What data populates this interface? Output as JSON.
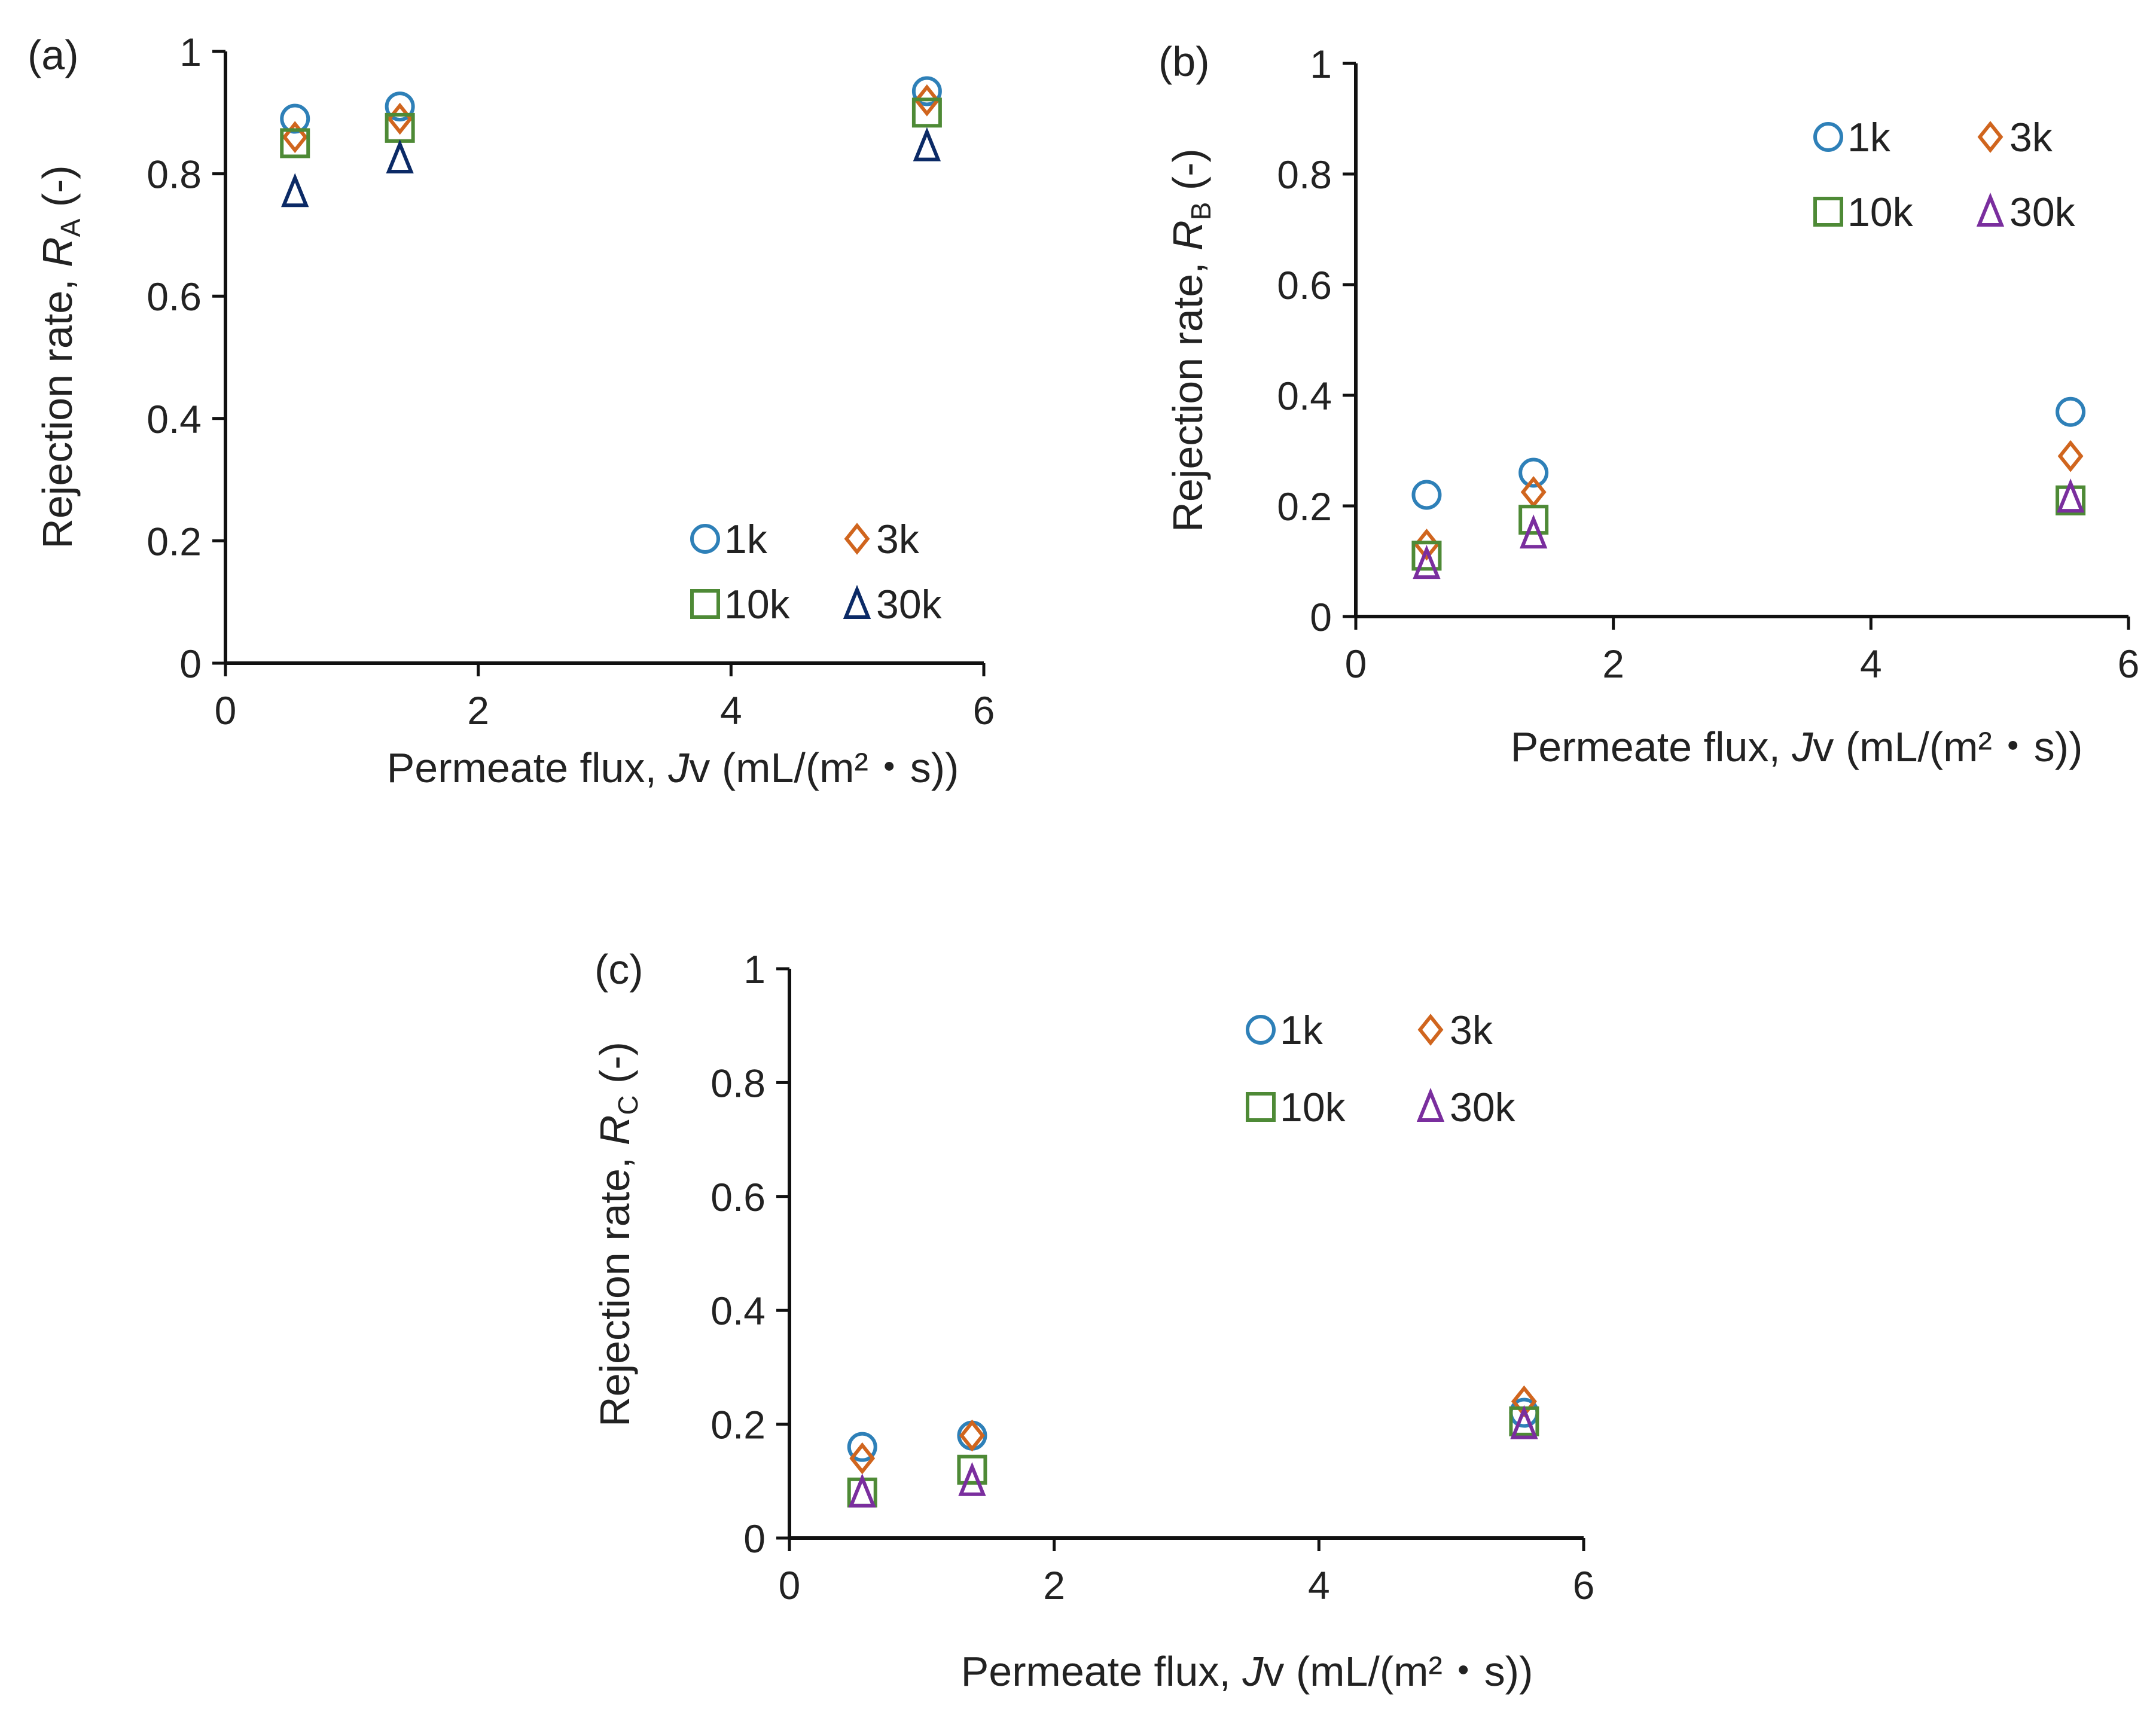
{
  "chart_data": [
    {
      "type": "scatter",
      "panel_label": "(a)",
      "xlabel": {
        "prefix": "Permeate flux, ",
        "var": "J",
        "suffix": "v (mL/(m²・s))"
      },
      "ylabel": {
        "prefix": "Rejection rate, ",
        "var": "R",
        "sub": "A",
        "suffix": " (-)"
      },
      "xlim": [
        0,
        6
      ],
      "ylim": [
        0,
        1
      ],
      "xticks": [
        "0",
        "2",
        "4",
        "6"
      ],
      "yticks": [
        "0",
        "0.2",
        "0.4",
        "0.6",
        "0.8",
        "1"
      ],
      "legend_position": "bottom-right",
      "x": [
        0.55,
        1.38,
        5.55
      ],
      "series": [
        {
          "name": "1k",
          "marker": "circle",
          "color": "#2E80B8",
          "values": [
            0.89,
            0.91,
            0.935
          ]
        },
        {
          "name": "3k",
          "marker": "diamond",
          "color": "#D0651E",
          "values": [
            0.86,
            0.89,
            0.92
          ]
        },
        {
          "name": "10k",
          "marker": "square",
          "color": "#4E8A36",
          "values": [
            0.85,
            0.875,
            0.9
          ]
        },
        {
          "name": "30k",
          "marker": "triangle",
          "color": "#0B2A66",
          "values": [
            0.77,
            0.825,
            0.845
          ]
        }
      ]
    },
    {
      "type": "scatter",
      "panel_label": "(b)",
      "xlabel": {
        "prefix": "Permeate flux, ",
        "var": "J",
        "suffix": "v (mL/(m²・s))"
      },
      "ylabel": {
        "prefix": "Rejection rate, ",
        "var": "R",
        "sub": "B",
        "suffix": " (-)"
      },
      "xlim": [
        0,
        6
      ],
      "ylim": [
        0,
        1
      ],
      "xticks": [
        "0",
        "2",
        "4",
        "6"
      ],
      "yticks": [
        "0",
        "0.2",
        "0.4",
        "0.6",
        "0.8",
        "1"
      ],
      "legend_position": "top-right",
      "x": [
        0.55,
        1.38,
        5.55
      ],
      "series": [
        {
          "name": "1k",
          "marker": "circle",
          "color": "#2E80B8",
          "values": [
            0.22,
            0.26,
            0.37
          ]
        },
        {
          "name": "3k",
          "marker": "diamond",
          "color": "#D0651E",
          "values": [
            0.13,
            0.225,
            0.29
          ]
        },
        {
          "name": "10k",
          "marker": "square",
          "color": "#4E8A36",
          "values": [
            0.11,
            0.175,
            0.21
          ]
        },
        {
          "name": "30k",
          "marker": "triangle",
          "color": "#7A2E9E",
          "values": [
            0.095,
            0.15,
            0.215
          ]
        }
      ]
    },
    {
      "type": "scatter",
      "panel_label": "(c)",
      "xlabel": {
        "prefix": "Permeate flux, ",
        "var": "J",
        "suffix": "v (mL/(m²・s))"
      },
      "ylabel": {
        "prefix": "Rejection rate, ",
        "var": "R",
        "sub": "C",
        "suffix": " (-)"
      },
      "xlim": [
        0,
        6
      ],
      "ylim": [
        0,
        1
      ],
      "xticks": [
        "0",
        "2",
        "4",
        "6"
      ],
      "yticks": [
        "0",
        "0.2",
        "0.4",
        "0.6",
        "0.8",
        "1"
      ],
      "legend_position": "top-right",
      "x": [
        0.55,
        1.38,
        5.55
      ],
      "series": [
        {
          "name": "1k",
          "marker": "circle",
          "color": "#2E80B8",
          "values": [
            0.16,
            0.18,
            0.22
          ]
        },
        {
          "name": "3k",
          "marker": "diamond",
          "color": "#D0651E",
          "values": [
            0.14,
            0.18,
            0.24
          ]
        },
        {
          "name": "10k",
          "marker": "square",
          "color": "#4E8A36",
          "values": [
            0.08,
            0.12,
            0.205
          ]
        },
        {
          "name": "30k",
          "marker": "triangle",
          "color": "#7A2E9E",
          "values": [
            0.08,
            0.1,
            0.2
          ]
        }
      ]
    }
  ]
}
